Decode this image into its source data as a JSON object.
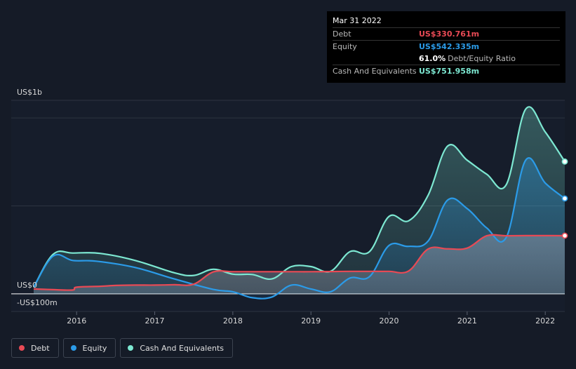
{
  "tooltip": {
    "date": "Mar 31 2022",
    "debt_label": "Debt",
    "debt_value": "US$330.761m",
    "equity_label": "Equity",
    "equity_value": "US$542.335m",
    "ratio_value": "61.0%",
    "ratio_label": "Debt/Equity Ratio",
    "cash_label": "Cash And Equivalents",
    "cash_value": "US$751.958m"
  },
  "legend": {
    "debt": "Debt",
    "equity": "Equity",
    "cash": "Cash And Equivalents"
  },
  "colors": {
    "debt": "#e84a55",
    "equity": "#2b9be8",
    "cash": "#7de8d2",
    "background": "#151b27",
    "grid": "#2d3441"
  },
  "chart_data": {
    "type": "area",
    "y_unit": "US$ millions",
    "ylim": [
      -100,
      1100
    ],
    "y_tick_labels": [
      {
        "value": 1000,
        "label": "US$1b"
      },
      {
        "value": 0,
        "label": "US$0"
      },
      {
        "value": -100,
        "label": "-US$100m"
      }
    ],
    "xlim": [
      2015.45,
      2022.25
    ],
    "x_tick_labels": [
      "2016",
      "2017",
      "2018",
      "2019",
      "2020",
      "2021",
      "2022"
    ],
    "grid": true,
    "legend_position": "bottom-left",
    "series": [
      {
        "name": "Debt",
        "points": [
          [
            2015.45,
            28
          ],
          [
            2015.7,
            24
          ],
          [
            2015.95,
            22
          ],
          [
            2016.0,
            38
          ],
          [
            2016.3,
            43
          ],
          [
            2016.5,
            48
          ],
          [
            2016.75,
            50
          ],
          [
            2017.0,
            50
          ],
          [
            2017.25,
            52
          ],
          [
            2017.5,
            55
          ],
          [
            2017.75,
            125
          ],
          [
            2018.0,
            126
          ],
          [
            2018.25,
            126
          ],
          [
            2018.5,
            126
          ],
          [
            2018.75,
            126
          ],
          [
            2019.0,
            126
          ],
          [
            2019.25,
            127
          ],
          [
            2019.5,
            128
          ],
          [
            2019.75,
            128
          ],
          [
            2020.0,
            128
          ],
          [
            2020.25,
            130
          ],
          [
            2020.5,
            255
          ],
          [
            2020.75,
            256
          ],
          [
            2021.0,
            260
          ],
          [
            2021.25,
            330
          ],
          [
            2021.5,
            330
          ],
          [
            2021.75,
            331
          ],
          [
            2022.0,
            331
          ],
          [
            2022.25,
            330.761
          ]
        ]
      },
      {
        "name": "Equity",
        "points": [
          [
            2015.45,
            38
          ],
          [
            2015.7,
            215
          ],
          [
            2015.95,
            190
          ],
          [
            2016.25,
            186
          ],
          [
            2016.75,
            150
          ],
          [
            2017.25,
            85
          ],
          [
            2017.75,
            25
          ],
          [
            2018.0,
            12
          ],
          [
            2018.25,
            -22
          ],
          [
            2018.5,
            -18
          ],
          [
            2018.75,
            50
          ],
          [
            2019.0,
            28
          ],
          [
            2019.25,
            12
          ],
          [
            2019.5,
            90
          ],
          [
            2019.75,
            98
          ],
          [
            2020.0,
            275
          ],
          [
            2020.25,
            270
          ],
          [
            2020.5,
            300
          ],
          [
            2020.75,
            533
          ],
          [
            2021.0,
            485
          ],
          [
            2021.25,
            375
          ],
          [
            2021.5,
            320
          ],
          [
            2021.75,
            760
          ],
          [
            2022.0,
            630
          ],
          [
            2022.25,
            542.335
          ]
        ]
      },
      {
        "name": "Cash And Equivalents",
        "points": [
          [
            2015.45,
            38
          ],
          [
            2015.7,
            225
          ],
          [
            2015.95,
            232
          ],
          [
            2016.3,
            230
          ],
          [
            2016.75,
            190
          ],
          [
            2017.25,
            120
          ],
          [
            2017.5,
            105
          ],
          [
            2017.75,
            140
          ],
          [
            2018.0,
            112
          ],
          [
            2018.25,
            110
          ],
          [
            2018.5,
            85
          ],
          [
            2018.75,
            155
          ],
          [
            2019.0,
            155
          ],
          [
            2019.25,
            128
          ],
          [
            2019.5,
            240
          ],
          [
            2019.75,
            240
          ],
          [
            2020.0,
            440
          ],
          [
            2020.25,
            415
          ],
          [
            2020.5,
            560
          ],
          [
            2020.75,
            840
          ],
          [
            2021.0,
            760
          ],
          [
            2021.25,
            680
          ],
          [
            2021.5,
            620
          ],
          [
            2021.75,
            1050
          ],
          [
            2022.0,
            920
          ],
          [
            2022.25,
            751.958
          ]
        ]
      }
    ]
  }
}
